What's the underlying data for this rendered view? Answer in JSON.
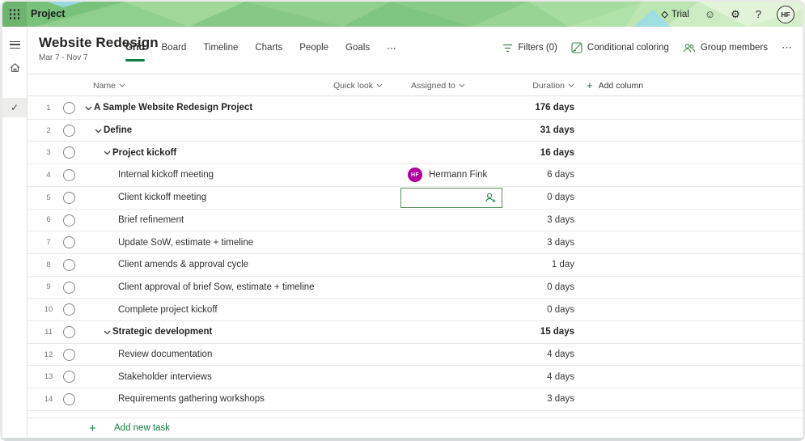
{
  "topbar": {
    "app_name": "Project",
    "trial_label": "Trial",
    "help_label": "?",
    "avatar_initials": "HF"
  },
  "icons": {
    "trial_gem": "◇",
    "smiley": "☺",
    "gear": "⚙",
    "more": "⋯",
    "check": "✓"
  },
  "header": {
    "title": "Website Redesign",
    "date_range": "Mar 7 - Nov 7",
    "tabs": [
      {
        "label": "Grid",
        "active": true
      },
      {
        "label": "Board",
        "active": false
      },
      {
        "label": "Timeline",
        "active": false
      },
      {
        "label": "Charts",
        "active": false
      },
      {
        "label": "People",
        "active": false
      },
      {
        "label": "Goals",
        "active": false
      }
    ],
    "more_tabs_label": "⋯"
  },
  "toolbar": {
    "filters_label": "Filters (0)",
    "conditional_coloring_label": "Conditional coloring",
    "group_members_label": "Group members",
    "more_label": "⋯"
  },
  "grid": {
    "columns": {
      "name": "Name",
      "quick_look": "Quick look",
      "assigned_to": "Assigned to",
      "duration": "Duration",
      "add_column": "Add column"
    },
    "rows": [
      {
        "num": "1",
        "name": "A Sample Website Redesign Project",
        "level": 0,
        "summary": true,
        "duration": "176 days"
      },
      {
        "num": "2",
        "name": "Define",
        "level": 1,
        "summary": true,
        "duration": "31 days"
      },
      {
        "num": "3",
        "name": "Project kickoff",
        "level": 2,
        "summary": true,
        "duration": "16 days"
      },
      {
        "num": "4",
        "name": "Internal kickoff meeting",
        "level": 3,
        "summary": false,
        "duration": "6 days",
        "assigned": {
          "initials": "HF",
          "name": "Hermann Fink",
          "color": "#b4009e"
        }
      },
      {
        "num": "5",
        "name": "Client kickoff meeting",
        "level": 3,
        "summary": false,
        "duration": "0 days",
        "picker": true
      },
      {
        "num": "6",
        "name": "Brief refinement",
        "level": 3,
        "summary": false,
        "duration": "3 days"
      },
      {
        "num": "7",
        "name": "Update SoW, estimate + timeline",
        "level": 3,
        "summary": false,
        "duration": "3 days"
      },
      {
        "num": "8",
        "name": "Client amends & approval cycle",
        "level": 3,
        "summary": false,
        "duration": "1 day"
      },
      {
        "num": "9",
        "name": "Client approval of brief Sow, estimate + timeline",
        "level": 3,
        "summary": false,
        "duration": "0 days"
      },
      {
        "num": "10",
        "name": "Complete project kickoff",
        "level": 3,
        "summary": false,
        "duration": "0 days"
      },
      {
        "num": "11",
        "name": "Strategic development",
        "level": 2,
        "summary": true,
        "duration": "15 days"
      },
      {
        "num": "12",
        "name": "Review documentation",
        "level": 3,
        "summary": false,
        "duration": "4 days"
      },
      {
        "num": "13",
        "name": "Stakeholder interviews",
        "level": 3,
        "summary": false,
        "duration": "4 days"
      },
      {
        "num": "14",
        "name": "Requirements gathering workshops",
        "level": 3,
        "summary": false,
        "duration": "3 days"
      }
    ],
    "add_task_label": "Add new task"
  },
  "colors": {
    "accent_green": "#107c41",
    "selected_cell_border": "#569160",
    "avatar_magenta": "#b4009e"
  }
}
